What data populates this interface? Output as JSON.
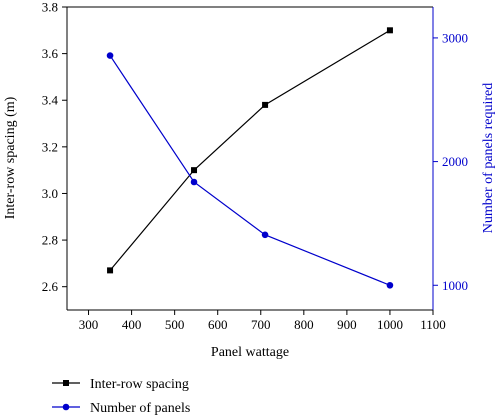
{
  "chart_data": {
    "type": "line",
    "xlabel": "Panel wattage",
    "ylabel_left": "Inter-row spacing (m)",
    "ylabel_right": "Number of panels required",
    "xlim": [
      250,
      1100
    ],
    "ylim_left": [
      2.5,
      3.8
    ],
    "ylim_right": [
      800,
      3250
    ],
    "x_ticks": [
      "300",
      "400",
      "500",
      "600",
      "700",
      "800",
      "900",
      "1000",
      "1100"
    ],
    "y_left_ticks": [
      "2.6",
      "2.8",
      "3.0",
      "3.2",
      "3.4",
      "3.6",
      "3.8"
    ],
    "y_right_ticks": [
      "1000",
      "2000",
      "3000"
    ],
    "grid": false,
    "legend_position": "bottom-left",
    "series": [
      {
        "name": "Inter-row spacing",
        "axis": "left",
        "color": "#000000",
        "marker": "square",
        "x": [
          350,
          545,
          710,
          1000
        ],
        "values": [
          2.67,
          3.1,
          3.38,
          3.7
        ]
      },
      {
        "name": "Number of panels",
        "axis": "right",
        "color": "#0000cc",
        "marker": "circle",
        "x": [
          350,
          545,
          710,
          1000
        ],
        "values": [
          2857,
          1835,
          1408,
          1000
        ]
      }
    ]
  }
}
